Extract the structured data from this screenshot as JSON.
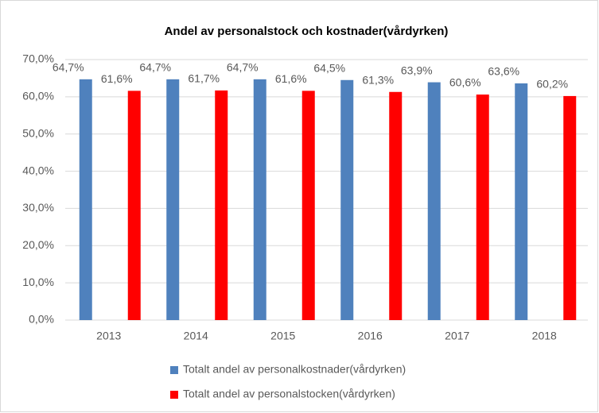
{
  "chart_data": {
    "type": "bar",
    "title": "Andel av personalstock och kostnader(vårdyrken)",
    "categories": [
      "2013",
      "2014",
      "2015",
      "2016",
      "2017",
      "2018"
    ],
    "series": [
      {
        "name": "Totalt andel av personalkostnader(vårdyrken)",
        "color": "#4f81bd",
        "values": [
          64.7,
          64.7,
          64.7,
          64.5,
          63.9,
          63.6
        ],
        "value_labels": [
          "64,7%",
          "64,7%",
          "64,7%",
          "64,5%",
          "63,9%",
          "63,6%"
        ]
      },
      {
        "name": "Totalt andel av personalstocken(vårdyrken)",
        "color": "#ff0000",
        "values": [
          61.6,
          61.7,
          61.6,
          61.3,
          60.6,
          60.2
        ],
        "value_labels": [
          "61,6%",
          "61,7%",
          "61,6%",
          "61,3%",
          "60,6%",
          "60,2%"
        ]
      }
    ],
    "ylim": [
      0,
      70
    ],
    "yticks": [
      {
        "value": 0,
        "label": "0,0%"
      },
      {
        "value": 10,
        "label": "10,0%"
      },
      {
        "value": 20,
        "label": "20,0%"
      },
      {
        "value": 30,
        "label": "30,0%"
      },
      {
        "value": 40,
        "label": "40,0%"
      },
      {
        "value": 50,
        "label": "50,0%"
      },
      {
        "value": 60,
        "label": "60,0%"
      },
      {
        "value": 70,
        "label": "70,0%"
      }
    ],
    "grid": true,
    "legend": "bottom"
  }
}
